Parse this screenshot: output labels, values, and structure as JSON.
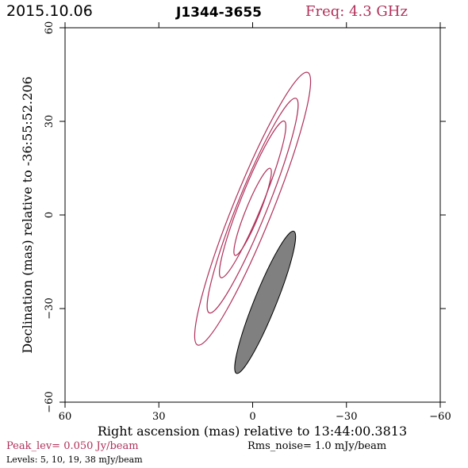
{
  "header": {
    "date": "2015.10.06",
    "source": "J1344-3655",
    "freq": "Freq: 4.3 GHz"
  },
  "footer": {
    "peak": "Peak_lev=  0.050 Jy/beam",
    "rms": "Rms_noise=   1.0 mJy/beam",
    "levels": "Levels:   5,  10,  19,  38 mJy/beam"
  },
  "colors": {
    "contour": "#b0305a",
    "beam": "#808080",
    "axis": "#000000",
    "peak_text": "#b0305a",
    "freq_text": "#b0305a"
  },
  "chart_data": {
    "type": "contour",
    "title": "J1344-3655",
    "xlabel": "Right ascension (mas) relative to 13:44:00.3813",
    "ylabel": "Declination (mas) relative to -36:55:52.206",
    "xlim": [
      60,
      -60
    ],
    "ylim": [
      -60,
      60
    ],
    "xticks": [
      60,
      30,
      0,
      -30,
      -60
    ],
    "yticks": [
      -60,
      -30,
      0,
      30,
      60
    ],
    "xtick_labels": [
      "60",
      "30",
      "0",
      "−30",
      "−60"
    ],
    "ytick_labels": [
      "−60",
      "−30",
      "0",
      "30",
      "60"
    ],
    "contour_levels_mJy": [
      5,
      10,
      19,
      38
    ],
    "contours": [
      {
        "level": 5,
        "center": [
          0,
          2
        ],
        "major_mas": 94,
        "minor_mas": 12.5,
        "pa_deg": 22
      },
      {
        "level": 10,
        "center": [
          0,
          3
        ],
        "major_mas": 74,
        "minor_mas": 9.5,
        "pa_deg": 22
      },
      {
        "level": 19,
        "center": [
          0,
          5
        ],
        "major_mas": 54,
        "minor_mas": 7,
        "pa_deg": 22
      },
      {
        "level": 38,
        "center": [
          0,
          1
        ],
        "major_mas": 30,
        "minor_mas": 4.5,
        "pa_deg": 22
      }
    ],
    "beam": {
      "center": [
        -4,
        -28
      ],
      "major_mas": 49,
      "minor_mas": 7,
      "pa_deg": 22
    }
  }
}
